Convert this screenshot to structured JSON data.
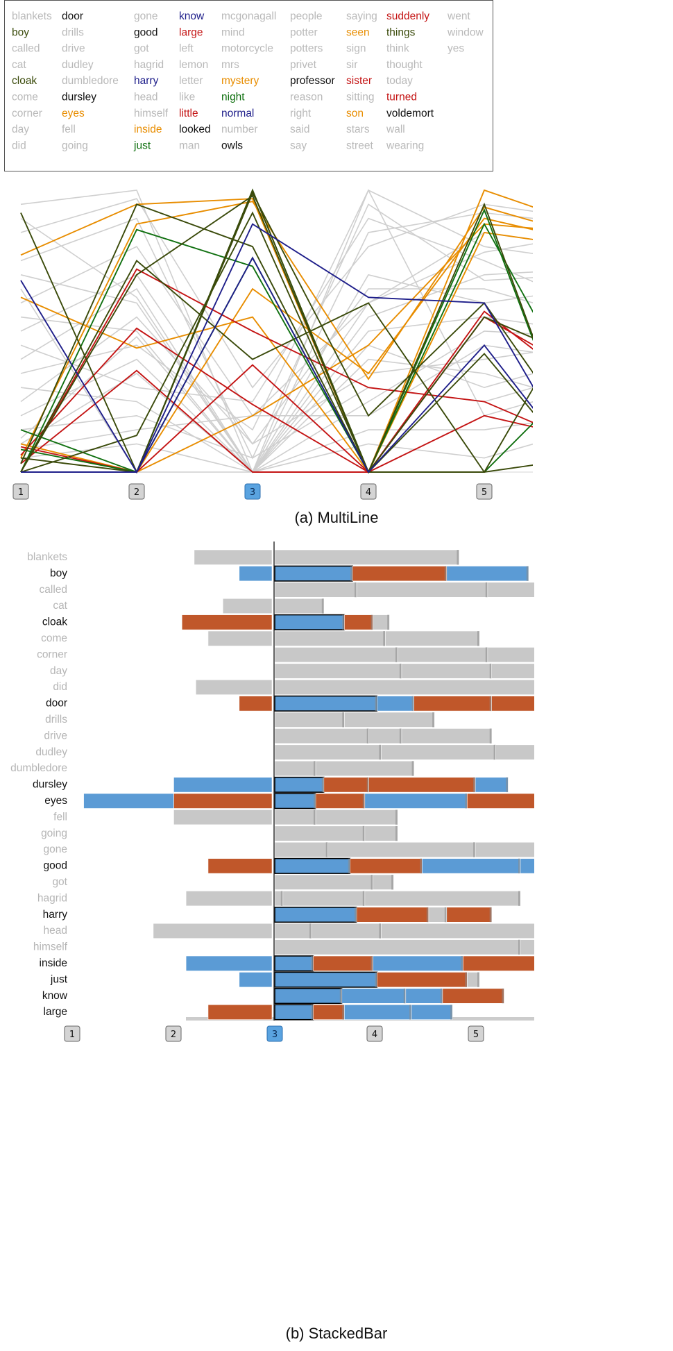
{
  "colors": {
    "gray": "#b9b9b9",
    "orange": "#e88d00",
    "red": "#c41414",
    "green": "#107010",
    "darkgreen": "#3a4a0a",
    "navy": "#1e1e8a",
    "black": "#111111",
    "bar_blue": "#5b9bd5",
    "bar_orange": "#c0572a",
    "bar_gray": "#c8c8c8"
  },
  "legend": {
    "columns": [
      [
        {
          "w": "blankets",
          "c": "gray"
        },
        {
          "w": "boy",
          "c": "darkgreen"
        },
        {
          "w": "called",
          "c": "gray"
        },
        {
          "w": "cat",
          "c": "gray"
        },
        {
          "w": "cloak",
          "c": "darkgreen"
        },
        {
          "w": "come",
          "c": "gray"
        },
        {
          "w": "corner",
          "c": "gray"
        },
        {
          "w": "day",
          "c": "gray"
        },
        {
          "w": "did",
          "c": "gray"
        }
      ],
      [
        {
          "w": "door",
          "c": "black"
        },
        {
          "w": "drills",
          "c": "gray"
        },
        {
          "w": "drive",
          "c": "gray"
        },
        {
          "w": "dudley",
          "c": "gray"
        },
        {
          "w": "dumbledore",
          "c": "gray"
        },
        {
          "w": "dursley",
          "c": "black"
        },
        {
          "w": "eyes",
          "c": "orange"
        },
        {
          "w": "fell",
          "c": "gray"
        },
        {
          "w": "going",
          "c": "gray"
        }
      ],
      [
        {
          "w": "gone",
          "c": "gray"
        },
        {
          "w": "good",
          "c": "black"
        },
        {
          "w": "got",
          "c": "gray"
        },
        {
          "w": "hagrid",
          "c": "gray"
        },
        {
          "w": "harry",
          "c": "navy"
        },
        {
          "w": "head",
          "c": "gray"
        },
        {
          "w": "himself",
          "c": "gray"
        },
        {
          "w": "inside",
          "c": "orange"
        },
        {
          "w": "just",
          "c": "green"
        }
      ],
      [
        {
          "w": "know",
          "c": "navy"
        },
        {
          "w": "large",
          "c": "red"
        },
        {
          "w": "left",
          "c": "gray"
        },
        {
          "w": "lemon",
          "c": "gray"
        },
        {
          "w": "letter",
          "c": "gray"
        },
        {
          "w": "like",
          "c": "gray"
        },
        {
          "w": "little",
          "c": "red"
        },
        {
          "w": "looked",
          "c": "black"
        },
        {
          "w": "man",
          "c": "gray"
        }
      ],
      [
        {
          "w": "mcgonagall",
          "c": "gray"
        },
        {
          "w": "mind",
          "c": "gray"
        },
        {
          "w": "motorcycle",
          "c": "gray"
        },
        {
          "w": "mrs",
          "c": "gray"
        },
        {
          "w": "mystery",
          "c": "orange"
        },
        {
          "w": "night",
          "c": "green"
        },
        {
          "w": "normal",
          "c": "navy"
        },
        {
          "w": "number",
          "c": "gray"
        },
        {
          "w": "owls",
          "c": "black"
        }
      ],
      [
        {
          "w": "people",
          "c": "gray"
        },
        {
          "w": "potter",
          "c": "gray"
        },
        {
          "w": "potters",
          "c": "gray"
        },
        {
          "w": "privet",
          "c": "gray"
        },
        {
          "w": "professor",
          "c": "black"
        },
        {
          "w": "reason",
          "c": "gray"
        },
        {
          "w": "right",
          "c": "gray"
        },
        {
          "w": "said",
          "c": "gray"
        },
        {
          "w": "say",
          "c": "gray"
        }
      ],
      [
        {
          "w": "saying",
          "c": "gray"
        },
        {
          "w": "seen",
          "c": "orange"
        },
        {
          "w": "sign",
          "c": "gray"
        },
        {
          "w": "sir",
          "c": "gray"
        },
        {
          "w": "sister",
          "c": "red"
        },
        {
          "w": "sitting",
          "c": "gray"
        },
        {
          "w": "son",
          "c": "orange"
        },
        {
          "w": "stars",
          "c": "gray"
        },
        {
          "w": "street",
          "c": "gray"
        }
      ],
      [
        {
          "w": "suddenly",
          "c": "red"
        },
        {
          "w": "things",
          "c": "darkgreen"
        },
        {
          "w": "think",
          "c": "gray"
        },
        {
          "w": "thought",
          "c": "gray"
        },
        {
          "w": "today",
          "c": "gray"
        },
        {
          "w": "turned",
          "c": "red"
        },
        {
          "w": "voldemort",
          "c": "black"
        },
        {
          "w": "wall",
          "c": "gray"
        },
        {
          "w": "wearing",
          "c": "gray"
        }
      ],
      [
        {
          "w": "went",
          "c": "gray"
        },
        {
          "w": "window",
          "c": "gray"
        },
        {
          "w": "yes",
          "c": "gray"
        }
      ]
    ]
  },
  "multiline": {
    "caption": "(a) MultiLine",
    "buttons": [
      "1",
      "2",
      "3",
      "4",
      "5"
    ],
    "active_button": 2,
    "ymax": 100,
    "gray_lines": [
      [
        95,
        100,
        0,
        100,
        80,
        75
      ],
      [
        85,
        97,
        30,
        80,
        95,
        90
      ],
      [
        70,
        60,
        0,
        70,
        60,
        65
      ],
      [
        60,
        80,
        20,
        60,
        85,
        80
      ],
      [
        55,
        50,
        0,
        45,
        30,
        40
      ],
      [
        50,
        70,
        10,
        35,
        40,
        45
      ],
      [
        45,
        30,
        25,
        90,
        75,
        60
      ],
      [
        40,
        65,
        0,
        55,
        70,
        72
      ],
      [
        35,
        45,
        15,
        100,
        20,
        30
      ],
      [
        30,
        25,
        0,
        25,
        50,
        48
      ],
      [
        25,
        55,
        10,
        65,
        65,
        55
      ],
      [
        20,
        40,
        0,
        40,
        35,
        25
      ],
      [
        15,
        20,
        5,
        30,
        25,
        35
      ],
      [
        10,
        35,
        0,
        50,
        55,
        50
      ],
      [
        8,
        15,
        20,
        20,
        45,
        40
      ],
      [
        5,
        10,
        0,
        15,
        15,
        20
      ],
      [
        65,
        0,
        0,
        85,
        92,
        88
      ],
      [
        75,
        90,
        5,
        95,
        68,
        70
      ],
      [
        90,
        62,
        0,
        10,
        5,
        15
      ],
      [
        12,
        48,
        0,
        60,
        78,
        84
      ]
    ],
    "color_lines": [
      {
        "c": "orange",
        "v": [
          77,
          95,
          97,
          0,
          100,
          88
        ]
      },
      {
        "c": "orange",
        "v": [
          62,
          44,
          55,
          0,
          85,
          80
        ]
      },
      {
        "c": "orange",
        "v": [
          0,
          0,
          65,
          35,
          90,
          82
        ]
      },
      {
        "c": "orange",
        "v": [
          10,
          0,
          20,
          45,
          88,
          85
        ]
      },
      {
        "c": "orange",
        "v": [
          5,
          88,
          96,
          33,
          94,
          84
        ]
      },
      {
        "c": "red",
        "v": [
          9,
          0,
          38,
          0,
          55,
          35
        ]
      },
      {
        "c": "red",
        "v": [
          0,
          72,
          50,
          30,
          25,
          10
        ]
      },
      {
        "c": "red",
        "v": [
          3,
          36,
          0,
          0,
          57,
          30
        ]
      },
      {
        "c": "red",
        "v": [
          6,
          51,
          24,
          0,
          20,
          12
        ]
      },
      {
        "c": "green",
        "v": [
          0,
          86,
          73,
          0,
          93,
          0
        ]
      },
      {
        "c": "green",
        "v": [
          15,
          0,
          76,
          0,
          88,
          25
        ]
      },
      {
        "c": "green",
        "v": [
          8,
          0,
          100,
          0,
          0,
          35
        ]
      },
      {
        "c": "darkgreen",
        "v": [
          92,
          0,
          100,
          0,
          95,
          0
        ]
      },
      {
        "c": "darkgreen",
        "v": [
          0,
          70,
          98,
          0,
          0,
          60
        ]
      },
      {
        "c": "darkgreen",
        "v": [
          5,
          0,
          99,
          20,
          60,
          10
        ]
      },
      {
        "c": "darkgreen",
        "v": [
          0,
          13,
          92,
          0,
          55,
          40
        ]
      },
      {
        "c": "darkgreen",
        "v": [
          0,
          75,
          40,
          60,
          0,
          5
        ]
      },
      {
        "c": "darkgreen",
        "v": [
          3,
          95,
          80,
          0,
          42,
          0
        ]
      },
      {
        "c": "navy",
        "v": [
          68,
          0,
          88,
          62,
          60,
          0
        ]
      },
      {
        "c": "navy",
        "v": [
          0,
          0,
          76,
          0,
          45,
          0
        ]
      }
    ]
  },
  "stacked": {
    "caption": "(b) StackedBar",
    "buttons": [
      "1",
      "2",
      "3",
      "4",
      "5"
    ],
    "active_button": 2,
    "rows": [
      {
        "word": "blankets",
        "hl": false,
        "left": [
          [
            "g",
            0.95
          ]
        ],
        "right": [
          [
            "g",
            2.25
          ]
        ]
      },
      {
        "word": "boy",
        "hl": true,
        "left": [
          [
            "b",
            0.4
          ]
        ],
        "right": [
          [
            "b",
            0.95
          ],
          [
            "o",
            1.15
          ],
          [
            "b",
            1.0
          ]
        ]
      },
      {
        "word": "called",
        "hl": false,
        "left": [],
        "right": [
          [
            "g",
            1.0
          ],
          [
            "g",
            1.6
          ],
          [
            "g",
            0.6
          ]
        ]
      },
      {
        "word": "cat",
        "hl": false,
        "left": [
          [
            "g",
            0.6
          ]
        ],
        "right": [
          [
            "g",
            0.6
          ]
        ]
      },
      {
        "word": "cloak",
        "hl": true,
        "left": [
          [
            "o",
            1.1
          ]
        ],
        "right": [
          [
            "b",
            0.85
          ],
          [
            "o",
            0.35
          ],
          [
            "g",
            0.2
          ]
        ]
      },
      {
        "word": "come",
        "hl": false,
        "left": [
          [
            "g",
            0.78
          ]
        ],
        "right": [
          [
            "g",
            1.35
          ],
          [
            "g",
            1.15
          ]
        ]
      },
      {
        "word": "corner",
        "hl": false,
        "left": [],
        "right": [
          [
            "g",
            1.5
          ],
          [
            "g",
            1.1
          ],
          [
            "g",
            0.6
          ]
        ]
      },
      {
        "word": "day",
        "hl": false,
        "left": [],
        "right": [
          [
            "g",
            1.55
          ],
          [
            "g",
            1.1
          ],
          [
            "g",
            0.55
          ]
        ]
      },
      {
        "word": "did",
        "hl": false,
        "left": [
          [
            "g",
            0.93
          ]
        ],
        "right": [
          [
            "g",
            3.2
          ]
        ]
      },
      {
        "word": "door",
        "hl": true,
        "left": [
          [
            "o",
            0.4
          ]
        ],
        "right": [
          [
            "b",
            1.25
          ],
          [
            "b",
            0.45
          ],
          [
            "o",
            0.95
          ],
          [
            "o",
            0.55
          ]
        ]
      },
      {
        "word": "drills",
        "hl": false,
        "left": [],
        "right": [
          [
            "g",
            0.85
          ],
          [
            "g",
            1.1
          ]
        ]
      },
      {
        "word": "drive",
        "hl": false,
        "left": [],
        "right": [
          [
            "g",
            1.15
          ],
          [
            "g",
            0.4
          ],
          [
            "g",
            1.1
          ]
        ]
      },
      {
        "word": "dudley",
        "hl": false,
        "left": [],
        "right": [
          [
            "g",
            1.3
          ],
          [
            "g",
            1.4
          ],
          [
            "g",
            0.7
          ]
        ]
      },
      {
        "word": "dumbledore",
        "hl": false,
        "left": [],
        "right": [
          [
            "g",
            0.5
          ],
          [
            "g",
            1.2
          ]
        ]
      },
      {
        "word": "dursley",
        "hl": true,
        "left": [
          [
            "b",
            1.2
          ]
        ],
        "right": [
          [
            "b",
            0.6
          ],
          [
            "o",
            0.55
          ],
          [
            "o",
            1.3
          ],
          [
            "b",
            0.4
          ]
        ]
      },
      {
        "word": "eyes",
        "hl": true,
        "left": [
          [
            "o",
            1.2
          ],
          [
            "b",
            1.1
          ]
        ],
        "right": [
          [
            "b",
            0.5
          ],
          [
            "o",
            0.6
          ],
          [
            "b",
            1.25
          ],
          [
            "o",
            0.85
          ]
        ]
      },
      {
        "word": "fell",
        "hl": false,
        "left": [
          [
            "g",
            1.2
          ]
        ],
        "right": [
          [
            "g",
            0.5
          ],
          [
            "g",
            1.0
          ]
        ]
      },
      {
        "word": "going",
        "hl": false,
        "left": [],
        "right": [
          [
            "g",
            1.1
          ],
          [
            "g",
            0.4
          ]
        ]
      },
      {
        "word": "gone",
        "hl": false,
        "left": [],
        "right": [
          [
            "g",
            0.65
          ],
          [
            "g",
            1.8
          ],
          [
            "g",
            0.75
          ]
        ]
      },
      {
        "word": "good",
        "hl": true,
        "left": [
          [
            "o",
            0.78
          ]
        ],
        "right": [
          [
            "b",
            0.92
          ],
          [
            "o",
            0.88
          ],
          [
            "b",
            1.2
          ],
          [
            "b",
            0.2
          ]
        ]
      },
      {
        "word": "got",
        "hl": false,
        "left": [],
        "right": [
          [
            "g",
            1.2
          ],
          [
            "g",
            0.25
          ]
        ]
      },
      {
        "word": "hagrid",
        "hl": false,
        "left": [
          [
            "g",
            1.05
          ]
        ],
        "right": [
          [
            "g",
            0.1
          ],
          [
            "g",
            1.0
          ],
          [
            "g",
            1.9
          ]
        ]
      },
      {
        "word": "harry",
        "hl": true,
        "left": [],
        "right": [
          [
            "b",
            1.0
          ],
          [
            "o",
            0.88
          ],
          [
            "g",
            0.22
          ],
          [
            "o",
            0.55
          ]
        ]
      },
      {
        "word": "head",
        "hl": false,
        "left": [
          [
            "g",
            1.45
          ]
        ],
        "right": [
          [
            "g",
            0.45
          ],
          [
            "g",
            0.85
          ],
          [
            "g",
            1.9
          ]
        ]
      },
      {
        "word": "himself",
        "hl": false,
        "left": [],
        "right": [
          [
            "g",
            3.0
          ],
          [
            "g",
            0.2
          ]
        ]
      },
      {
        "word": "inside",
        "hl": true,
        "left": [
          [
            "b",
            1.05
          ]
        ],
        "right": [
          [
            "b",
            0.47
          ],
          [
            "o",
            0.73
          ],
          [
            "b",
            1.1
          ],
          [
            "o",
            0.9
          ]
        ]
      },
      {
        "word": "just",
        "hl": true,
        "left": [
          [
            "b",
            0.4
          ]
        ],
        "right": [
          [
            "b",
            1.25
          ],
          [
            "o",
            1.1
          ],
          [
            "g",
            0.15
          ]
        ]
      },
      {
        "word": "know",
        "hl": true,
        "left": [],
        "right": [
          [
            "b",
            0.82
          ],
          [
            "b",
            0.78
          ],
          [
            "b",
            0.45
          ],
          [
            "o",
            0.75
          ]
        ]
      },
      {
        "word": "large",
        "hl": true,
        "left": [
          [
            "o",
            0.78
          ]
        ],
        "right": [
          [
            "b",
            0.47
          ],
          [
            "o",
            0.38
          ],
          [
            "b",
            0.82
          ],
          [
            "b",
            0.5
          ]
        ]
      }
    ]
  }
}
